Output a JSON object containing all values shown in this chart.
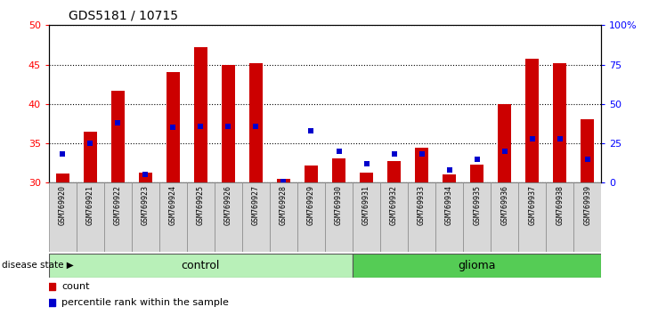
{
  "title": "GDS5181 / 10715",
  "samples": [
    "GSM769920",
    "GSM769921",
    "GSM769922",
    "GSM769923",
    "GSM769924",
    "GSM769925",
    "GSM769926",
    "GSM769927",
    "GSM769928",
    "GSM769929",
    "GSM769930",
    "GSM769931",
    "GSM769932",
    "GSM769933",
    "GSM769934",
    "GSM769935",
    "GSM769936",
    "GSM769937",
    "GSM769938",
    "GSM769939"
  ],
  "count": [
    31.2,
    36.5,
    41.7,
    31.3,
    44.0,
    47.2,
    45.0,
    45.2,
    30.5,
    32.2,
    33.1,
    31.3,
    32.7,
    34.4,
    31.1,
    32.3,
    40.0,
    45.7,
    45.2,
    38.1
  ],
  "percentile": [
    18,
    25,
    38,
    5,
    35,
    36,
    35.5,
    35.5,
    1,
    33,
    20,
    12,
    18,
    18,
    8,
    15,
    20,
    28,
    28,
    15
  ],
  "control_count": 11,
  "ylim_left": [
    30,
    50
  ],
  "ylim_right": [
    0,
    100
  ],
  "yticks_left": [
    30,
    35,
    40,
    45,
    50
  ],
  "yticks_right": [
    0,
    25,
    50,
    75,
    100
  ],
  "ytick_labels_right": [
    "0",
    "25",
    "50",
    "75",
    "100%"
  ],
  "bar_color": "#cc0000",
  "dot_color": "#0000cc",
  "bar_width": 0.5,
  "disease_label": "disease state"
}
